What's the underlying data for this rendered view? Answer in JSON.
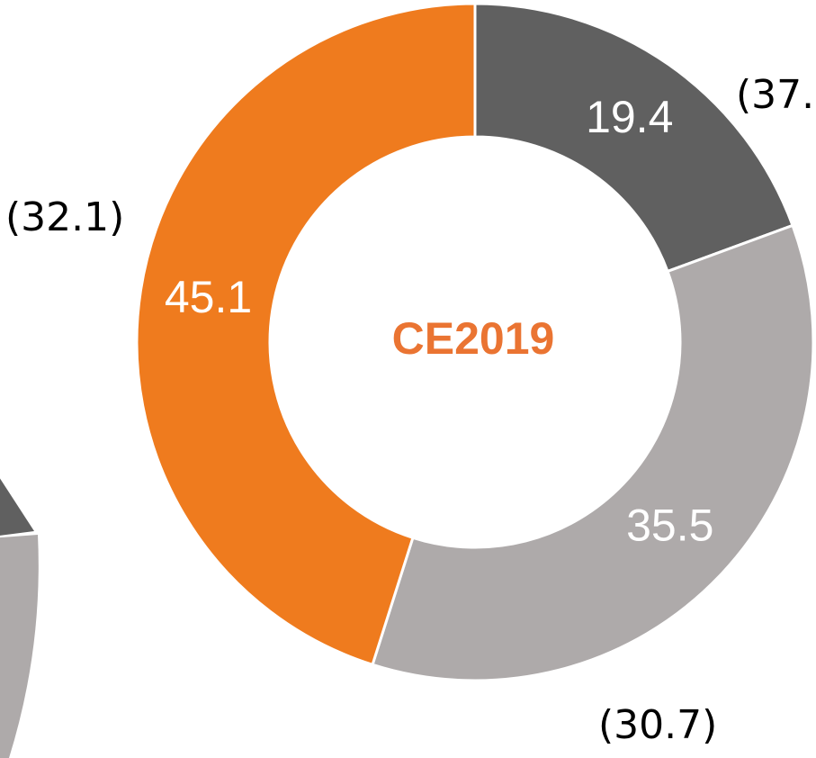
{
  "chart_data": {
    "type": "donut",
    "center_label": "CE2019",
    "categories": [
      null,
      null,
      null
    ],
    "values": [
      19.4,
      35.5,
      45.1
    ],
    "colors": [
      "#606060",
      "#aeaaaa",
      "#ef7b1e"
    ],
    "annotations": [
      "(37.",
      "(30.7)",
      "(32.1)"
    ]
  }
}
